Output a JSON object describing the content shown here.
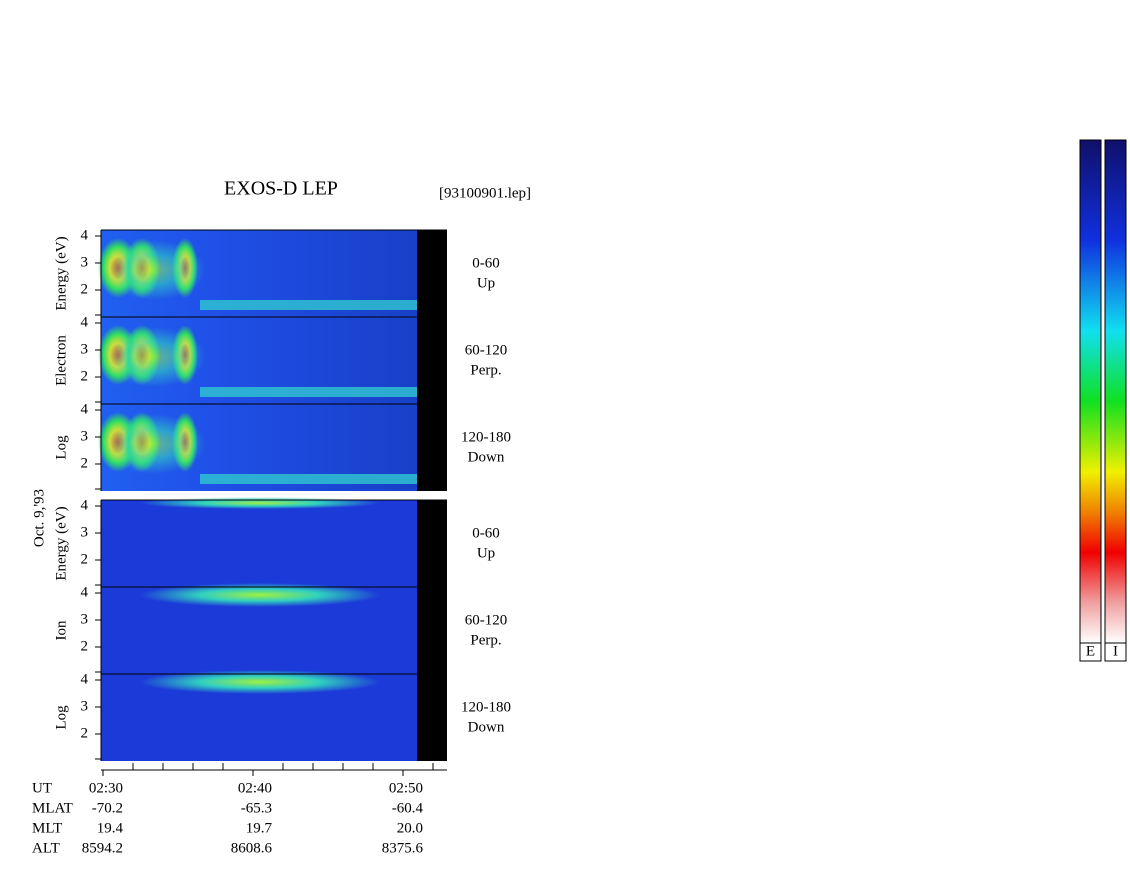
{
  "header": {
    "title": "EXOS-D LEP",
    "file": "[93100901.lep]",
    "date": "Oct. 9,'93"
  },
  "groups": [
    {
      "axis_label": [
        "Log",
        "Electron",
        "Energy (eV)"
      ],
      "panels": [
        {
          "pitch": "0-60",
          "direction": "Up"
        },
        {
          "pitch": "60-120",
          "direction": "Perp."
        },
        {
          "pitch": "120-180",
          "direction": "Down"
        }
      ],
      "yticks": [
        "4",
        "3",
        "2"
      ]
    },
    {
      "axis_label": [
        "Log",
        "Ion",
        "Energy (eV)"
      ],
      "panels": [
        {
          "pitch": "0-60",
          "direction": "Up"
        },
        {
          "pitch": "60-120",
          "direction": "Perp."
        },
        {
          "pitch": "120-180",
          "direction": "Down"
        }
      ],
      "yticks": [
        "4",
        "3",
        "2"
      ]
    }
  ],
  "orbit_table": {
    "rows": [
      {
        "label": "UT",
        "values": [
          "02:30",
          "02:40",
          "02:50"
        ]
      },
      {
        "label": "MLAT",
        "values": [
          "-70.2",
          "-65.3",
          "-60.4"
        ]
      },
      {
        "label": "MLT",
        "values": [
          "19.4",
          "19.7",
          "20.0"
        ]
      },
      {
        "label": "ALT",
        "values": [
          "8594.2",
          "8608.6",
          "8375.6"
        ]
      }
    ]
  },
  "colorbars": [
    "E",
    "I"
  ]
}
